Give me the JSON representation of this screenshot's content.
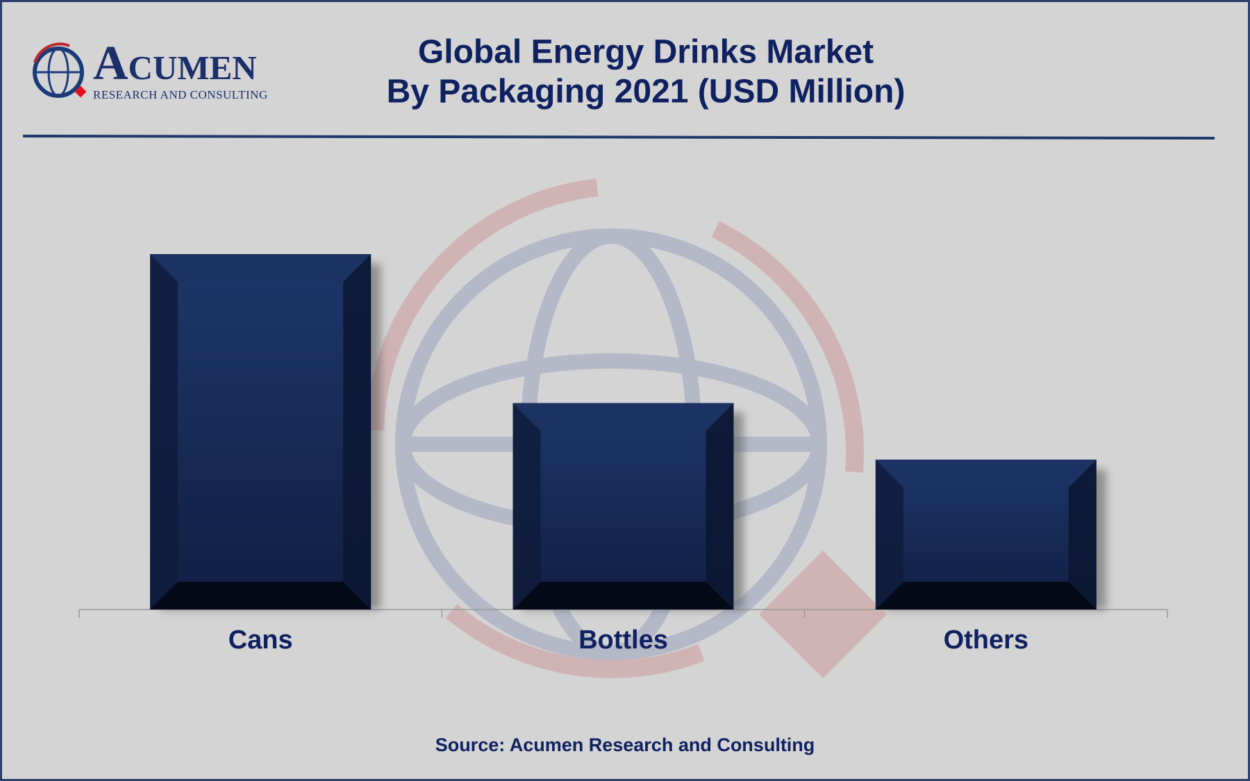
{
  "logo": {
    "name": "Acumen",
    "tagline": "RESEARCH AND CONSULTING"
  },
  "chart_data": {
    "type": "bar",
    "title": "Global Energy Drinks Market",
    "subtitle": "By Packaging 2021 (USD Million)",
    "categories": [
      "Cans",
      "Bottles",
      "Others"
    ],
    "values": [
      446,
      259,
      188
    ],
    "color": "#1b3263",
    "source": "Source: Acumen Research and Consulting"
  }
}
